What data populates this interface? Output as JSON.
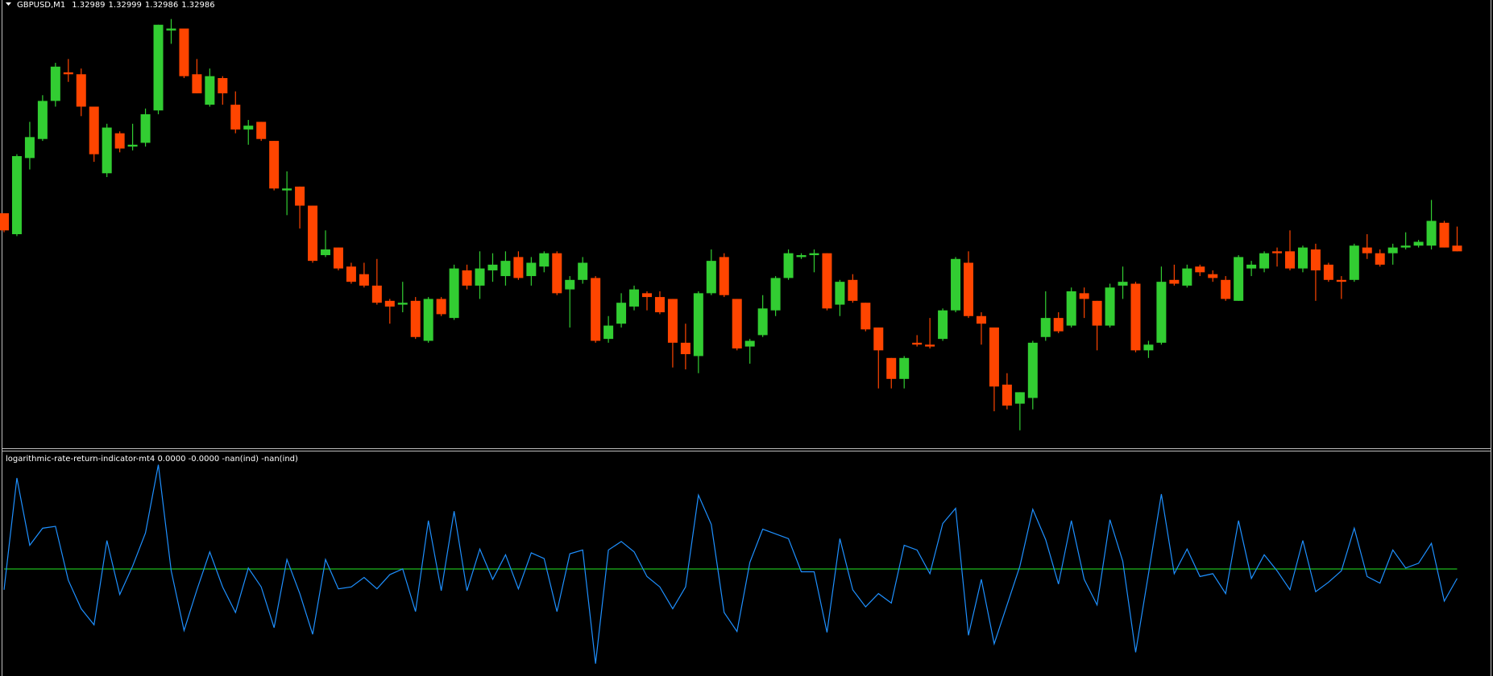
{
  "chart_data": [
    {
      "type": "candlestick",
      "title": "GBPUSD,M1",
      "up_color": "#32cd32",
      "down_color": "#ff4500",
      "ylim": [
        1.32883,
        1.33118
      ],
      "open": [
        1.33006,
        1.32995,
        1.33035,
        1.33045,
        1.33065,
        1.3308,
        1.33079,
        1.33062,
        1.33027,
        1.33048,
        1.33041,
        1.33043,
        1.3306,
        1.33102,
        1.33103,
        1.33079,
        1.33063,
        1.33077,
        1.33063,
        1.3305,
        1.33054,
        1.33044,
        1.33018,
        1.3302,
        1.3301,
        1.32984,
        1.32988,
        1.32978,
        1.32974,
        1.32968,
        1.3296,
        1.32958,
        1.3296,
        1.32939,
        1.32961,
        1.32951,
        1.32976,
        1.32968,
        1.32976,
        1.32973,
        1.32983,
        1.32973,
        1.32978,
        1.32985,
        1.32966,
        1.32971,
        1.32972,
        1.3294,
        1.32948,
        1.32957,
        1.32964,
        1.32962,
        1.32961,
        1.32938,
        1.32931,
        1.32964,
        1.32983,
        1.32961,
        1.32936,
        1.32942,
        1.32955,
        1.32972,
        1.32983,
        1.32984,
        1.32985,
        1.32958,
        1.32971,
        1.32959,
        1.32946,
        1.3293,
        1.32919,
        1.32938,
        1.32937,
        1.3294,
        1.32955,
        1.3298,
        1.32952,
        1.32946,
        1.32916,
        1.32906,
        1.32909,
        1.32941,
        1.32951,
        1.32947,
        1.32964,
        1.3296,
        1.32947,
        1.32968,
        1.32969,
        1.32934,
        1.32938,
        1.32971,
        1.32968,
        1.32978,
        1.32974,
        1.32971,
        1.3296,
        1.32977,
        1.32977,
        1.32986,
        1.32986,
        1.32977,
        1.32987,
        1.32979,
        1.32971,
        1.32971,
        1.32988,
        1.32985,
        1.32985,
        1.32988,
        1.32989,
        1.32989,
        1.33001,
        1.32989
      ],
      "high": [
        1.33006,
        1.33037,
        1.33054,
        1.33068,
        1.33085,
        1.33087,
        1.33082,
        1.33062,
        1.33053,
        1.33049,
        1.33053,
        1.33061,
        1.33105,
        1.33108,
        1.33103,
        1.33087,
        1.33082,
        1.33078,
        1.3307,
        1.33055,
        1.33054,
        1.33044,
        1.33028,
        1.3302,
        1.3301,
        1.32997,
        1.32988,
        1.3298,
        1.3298,
        1.32982,
        1.32961,
        1.3297,
        1.32962,
        1.32962,
        1.32962,
        1.32979,
        1.32979,
        1.32986,
        1.32985,
        1.32986,
        1.32986,
        1.32983,
        1.32986,
        1.32986,
        1.32973,
        1.32983,
        1.32973,
        1.32952,
        1.32964,
        1.32968,
        1.32965,
        1.32965,
        1.32961,
        1.32948,
        1.32965,
        1.32987,
        1.32985,
        1.32961,
        1.3294,
        1.32963,
        1.32973,
        1.32987,
        1.32985,
        1.32987,
        1.32985,
        1.32971,
        1.32974,
        1.32959,
        1.32946,
        1.3293,
        1.32931,
        1.32942,
        1.32951,
        1.32956,
        1.32983,
        1.32986,
        1.32954,
        1.32946,
        1.32922,
        1.32912,
        1.32939,
        1.32965,
        1.32954,
        1.32967,
        1.32967,
        1.3296,
        1.32969,
        1.32978,
        1.3297,
        1.32939,
        1.32978,
        1.32979,
        1.32979,
        1.32979,
        1.32976,
        1.32973,
        1.32984,
        1.32981,
        1.32986,
        1.32988,
        1.32997,
        1.32989,
        1.3299,
        1.3298,
        1.32973,
        1.3299,
        1.32995,
        1.32987,
        1.3299,
        1.32996,
        1.32992,
        1.33013,
        1.33002,
        1.32999
      ],
      "low": [
        1.32996,
        1.32994,
        1.33029,
        1.33044,
        1.33062,
        1.33075,
        1.33057,
        1.33033,
        1.33025,
        1.33038,
        1.33039,
        1.33041,
        1.33058,
        1.33095,
        1.33077,
        1.33069,
        1.33062,
        1.33063,
        1.33048,
        1.33042,
        1.33044,
        1.33018,
        1.33005,
        1.32998,
        1.3298,
        1.32983,
        1.32976,
        1.32969,
        1.32967,
        1.32958,
        1.32948,
        1.32954,
        1.3294,
        1.32938,
        1.32952,
        1.3295,
        1.32966,
        1.32961,
        1.3297,
        1.32968,
        1.32971,
        1.32968,
        1.32975,
        1.32963,
        1.32946,
        1.32969,
        1.32938,
        1.32938,
        1.32946,
        1.32955,
        1.32955,
        1.32953,
        1.32925,
        1.32924,
        1.32922,
        1.32963,
        1.32962,
        1.32934,
        1.32927,
        1.32941,
        1.32952,
        1.32971,
        1.32982,
        1.32975,
        1.32955,
        1.32952,
        1.32959,
        1.32944,
        1.32914,
        1.32914,
        1.32914,
        1.32936,
        1.32935,
        1.32939,
        1.32954,
        1.32951,
        1.32937,
        1.32902,
        1.32903,
        1.32892,
        1.32903,
        1.32939,
        1.32943,
        1.32946,
        1.32951,
        1.32934,
        1.32946,
        1.32961,
        1.32933,
        1.3293,
        1.32937,
        1.32968,
        1.32967,
        1.32973,
        1.3297,
        1.3296,
        1.3296,
        1.32973,
        1.32975,
        1.32978,
        1.32976,
        1.32975,
        1.3296,
        1.3297,
        1.32961,
        1.3297,
        1.32982,
        1.32978,
        1.32979,
        1.32987,
        1.32988,
        1.32987,
        1.32988,
        1.32986
      ],
      "close": [
        1.32997,
        1.33036,
        1.33046,
        1.33065,
        1.33083,
        1.33079,
        1.33062,
        1.33037,
        1.33051,
        1.3304,
        1.33042,
        1.33058,
        1.33105,
        1.33103,
        1.33078,
        1.33069,
        1.33078,
        1.33069,
        1.3305,
        1.33052,
        1.33045,
        1.33019,
        1.33019,
        1.3301,
        1.32981,
        1.32987,
        1.32977,
        1.3297,
        1.32968,
        1.32959,
        1.32957,
        1.32959,
        1.32941,
        1.32961,
        1.32953,
        1.32977,
        1.32968,
        1.32977,
        1.32979,
        1.32981,
        1.32972,
        1.3298,
        1.32985,
        1.32964,
        1.32971,
        1.3298,
        1.32939,
        1.32947,
        1.32959,
        1.32966,
        1.32962,
        1.32954,
        1.32938,
        1.32932,
        1.32964,
        1.32981,
        1.32963,
        1.32935,
        1.32939,
        1.32956,
        1.32972,
        1.32985,
        1.32984,
        1.32985,
        1.32956,
        1.3297,
        1.3296,
        1.32945,
        1.32934,
        1.32919,
        1.3293,
        1.32937,
        1.32936,
        1.32955,
        1.32982,
        1.32952,
        1.32948,
        1.32915,
        1.32905,
        1.32912,
        1.32938,
        1.32951,
        1.32944,
        1.32965,
        1.32961,
        1.32947,
        1.32967,
        1.3297,
        1.32934,
        1.32937,
        1.3297,
        1.32969,
        1.32977,
        1.32975,
        1.32972,
        1.32961,
        1.32983,
        1.32979,
        1.32985,
        1.32985,
        1.32977,
        1.32988,
        1.32976,
        1.32971,
        1.3297,
        1.32989,
        1.32985,
        1.32979,
        1.32988,
        1.32989,
        1.32991,
        1.33002,
        1.32988,
        1.32986
      ]
    },
    {
      "type": "line",
      "title": "logarithmic-rate-return-indicator-mt4 0.0000 -0.0000 -nan(ind) -nan(ind)",
      "color": "#1e90ff",
      "level": 0,
      "level_color": "#1db91d",
      "ylim": [
        -0.000226,
        0.000248
      ],
      "values": [
        -4.4e-05,
        0.000192,
        5e-05,
        8.6e-05,
        9e-05,
        -2.4e-05,
        -8.4e-05,
        -0.000118,
        6e-05,
        -5.4e-05,
        6e-06,
        7.6e-05,
        0.00022,
        -4e-06,
        -0.00013,
        -4.4e-05,
        3.6e-05,
        -3.8e-05,
        -9.2e-05,
        2e-06,
        -3.8e-05,
        -0.000124,
        2e-05,
        -5.2e-05,
        -0.000138,
        2e-05,
        -4.2e-05,
        -3.8e-05,
        -1.8e-05,
        -4.2e-05,
        -1.2e-05,
        0,
        -9e-05,
        0.000102,
        -4.6e-05,
        0.000122,
        -4.6e-05,
        4.2e-05,
        -2.2e-05,
        3e-05,
        -4.2e-05,
        3.4e-05,
        2.2e-05,
        -9e-05,
        3.2e-05,
        4e-05,
        -0.0002,
        4e-05,
        5.8e-05,
        3.6e-05,
        -1.6e-05,
        -3.8e-05,
        -8.4e-05,
        -3.8e-05,
        0.000156,
        9.4e-05,
        -9.2e-05,
        -0.000132,
        1.4e-05,
        8.4e-05,
        7.4e-05,
        6.4e-05,
        -6e-06,
        -6e-06,
        -0.000134,
        6.4e-05,
        -4.4e-05,
        -8e-05,
        -5.2e-05,
        -7.2e-05,
        5e-05,
        4e-05,
        -1e-05,
        9.6e-05,
        0.000128,
        -0.00014,
        -2.2e-05,
        -0.000158,
        -7.6e-05,
        6e-06,
        0.000126,
        6.2e-05,
        -3.2e-05,
        0.000102,
        -2.2e-05,
        -7.6e-05,
        0.000104,
        1.6e-05,
        -0.000176,
        -1e-05,
        0.000158,
        -1e-05,
        4.2e-05,
        -1.6e-05,
        -1e-05,
        -5.2e-05,
        0.000102,
        -2e-05,
        3e-05,
        -4e-06,
        -4.4e-05,
        6e-05,
        -4.8e-05,
        -2.8e-05,
        -4e-06,
        8.6e-05,
        -1.6e-05,
        -3e-05,
        4e-05,
        2e-06,
        1.2e-05,
        5.4e-05,
        -6.8e-05,
        -2e-05
      ]
    }
  ]
}
